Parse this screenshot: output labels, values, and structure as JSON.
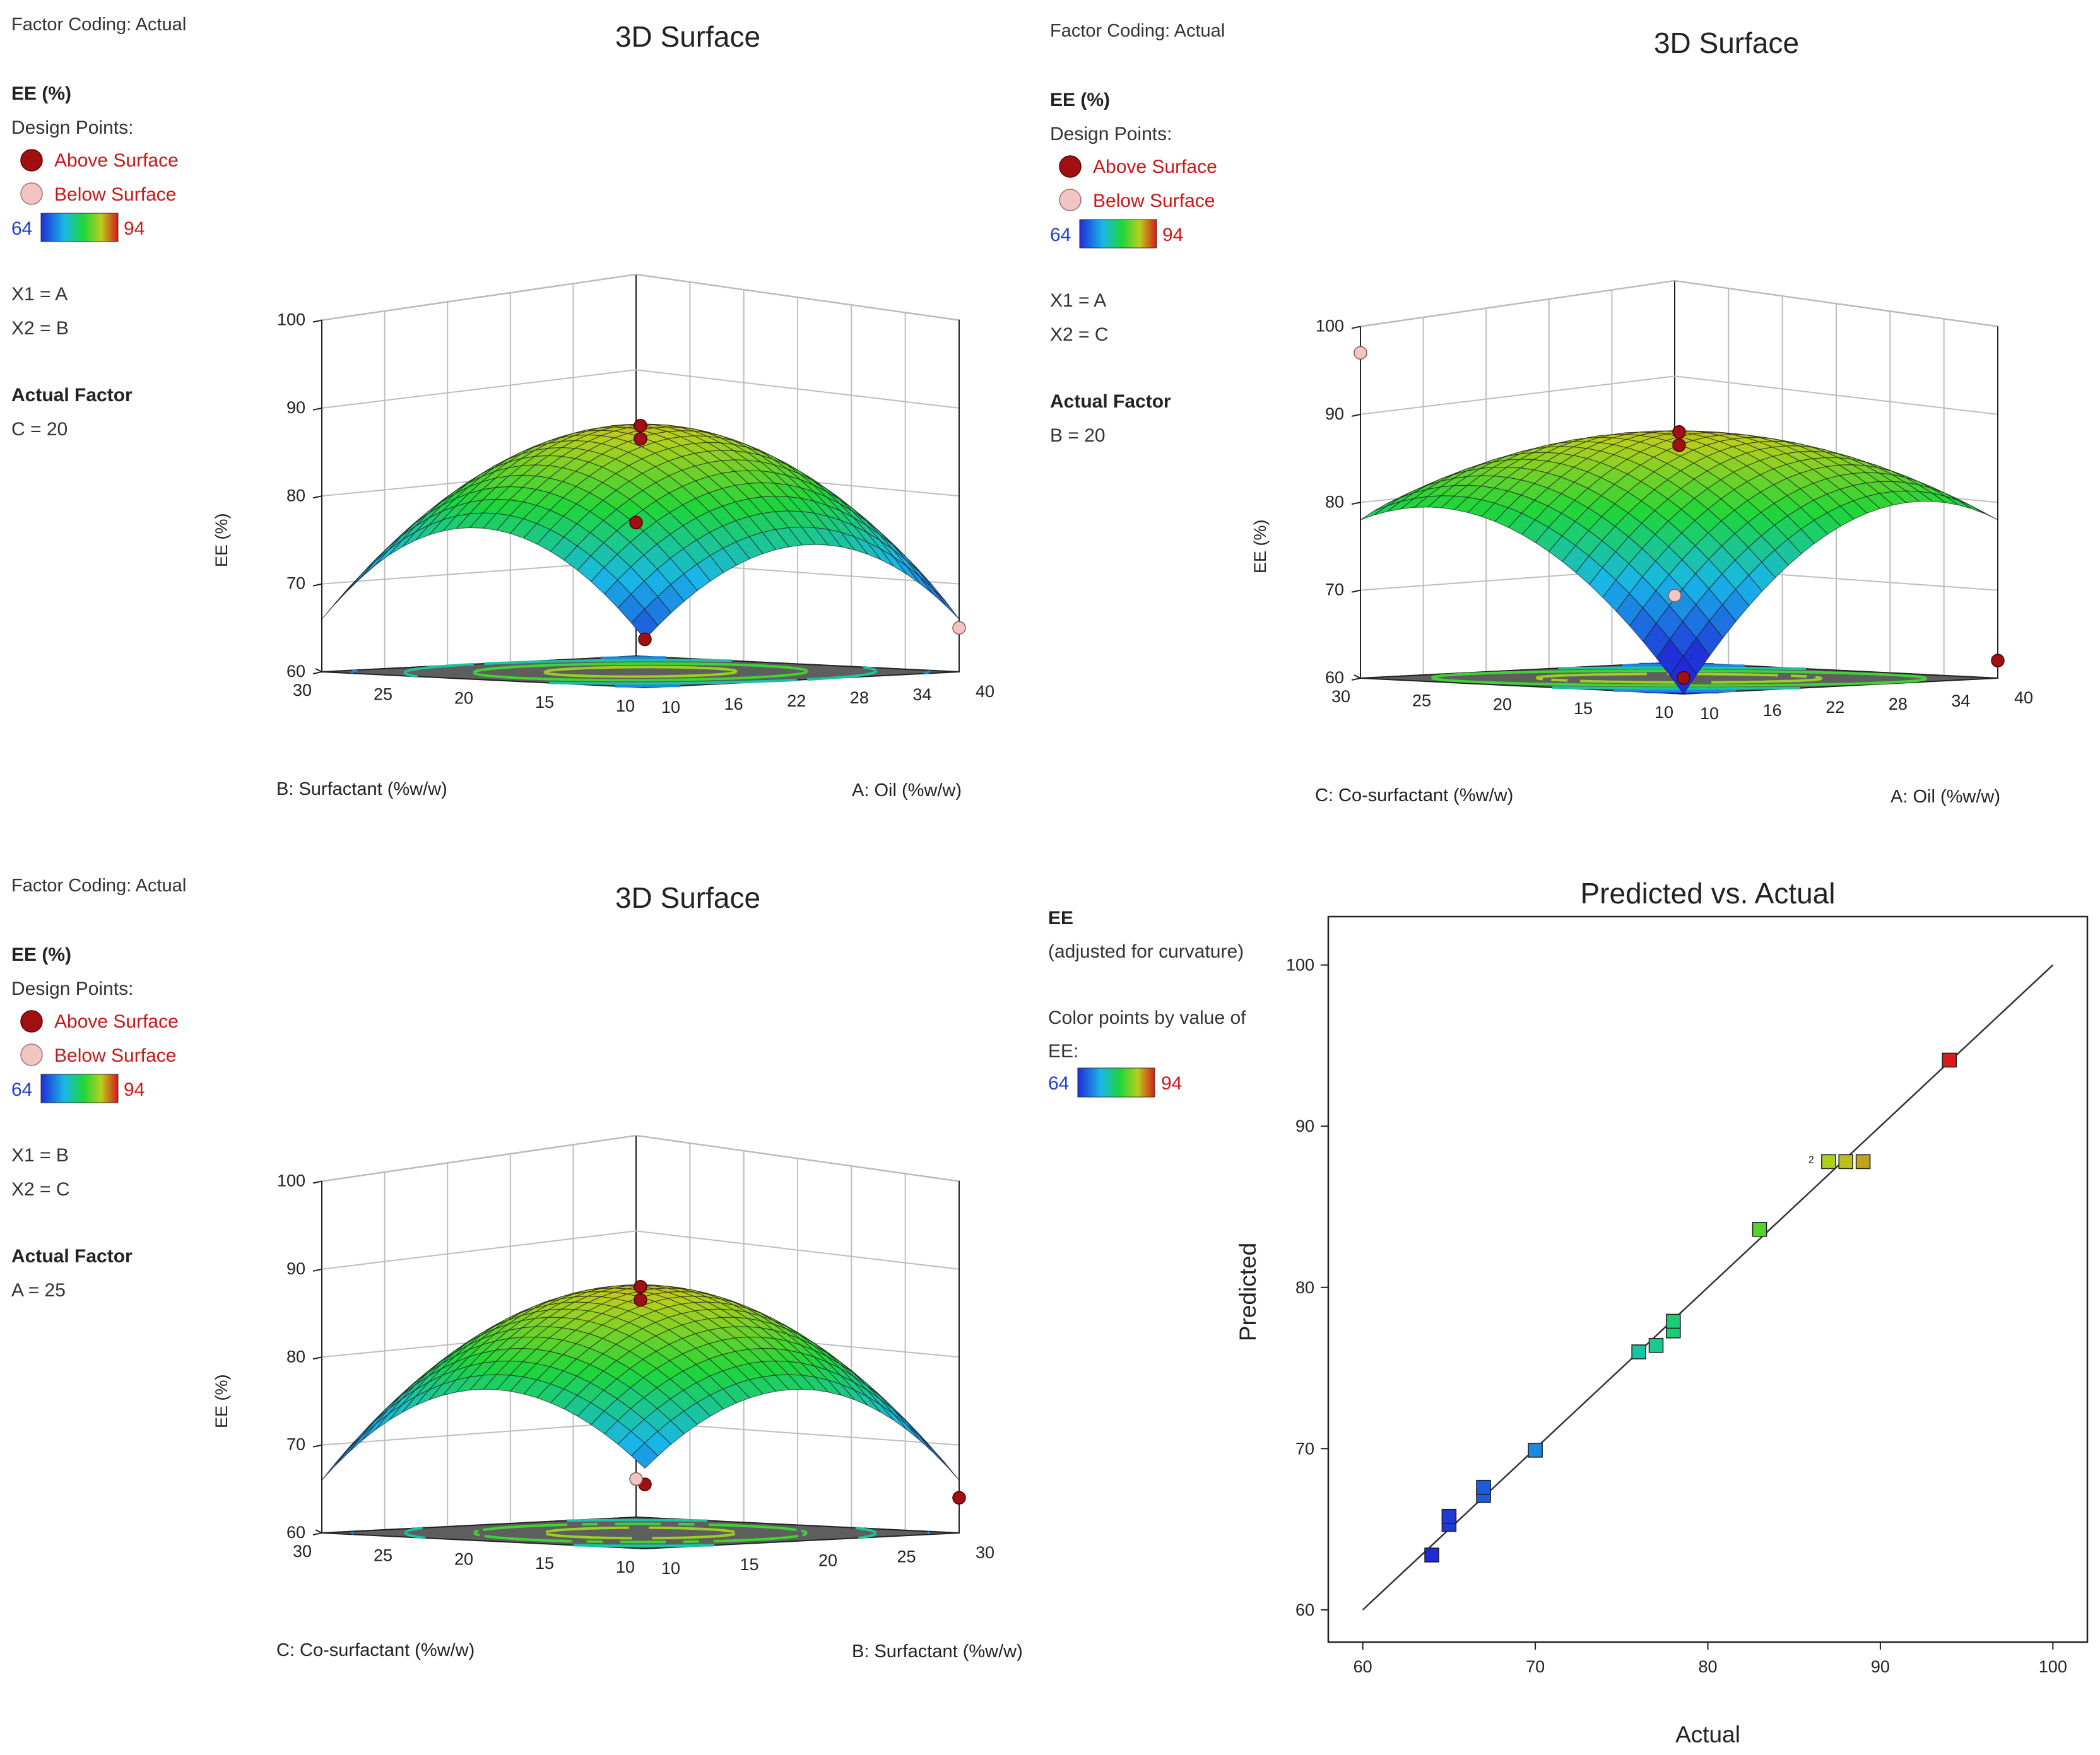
{
  "colors": {
    "above_point": "#a01010",
    "below_point": "#f2c4c4",
    "scale_low_text": "#1f3fd0",
    "scale_high_text": "#d01818",
    "legend_red_text": "#c81818",
    "floor": "#5e5e5e",
    "grid": "#bdbdbd",
    "axis": "#222222"
  },
  "panels": [
    {
      "factor_coding": "Factor Coding: Actual",
      "title": "3D Surface",
      "response": "EE (%)",
      "design_points": "Design Points:",
      "above": "Above Surface",
      "below": "Below Surface",
      "scale_min": "64",
      "scale_max": "94",
      "x1": "X1 = A",
      "x2": "X2 = B",
      "actual_factor": "Actual Factor",
      "actual_value": "C = 20",
      "z_label": "EE (%)",
      "z_ticks": [
        "60",
        "70",
        "80",
        "90",
        "100"
      ],
      "left_axis_label": "B: Surfactant (%w/w)",
      "left_ticks": [
        "10",
        "15",
        "20",
        "25",
        "30"
      ],
      "right_axis_label": "A: Oil (%w/w)",
      "right_ticks": [
        "10",
        "16",
        "22",
        "28",
        "34",
        "40"
      ],
      "model": {
        "center": 88,
        "a": 12,
        "b": 10,
        "ab": 0
      },
      "points": [
        {
          "u": 0,
          "v": 0,
          "ee": 88,
          "type": "above"
        },
        {
          "u": 0,
          "v": 0,
          "ee": 86.5,
          "type": "above"
        },
        {
          "u": -1,
          "v": 1,
          "ee": 66,
          "type": "above"
        },
        {
          "u": 1,
          "v": -1,
          "ee": 74,
          "type": "above"
        },
        {
          "u": -1,
          "v": -1,
          "ee": 65,
          "type": "below"
        }
      ]
    },
    {
      "factor_coding": "Factor Coding: Actual",
      "title": "3D Surface",
      "response": "EE (%)",
      "design_points": "Design Points:",
      "above": "Above Surface",
      "below": "Below Surface",
      "scale_min": "64",
      "scale_max": "94",
      "x1": "X1 = A",
      "x2": "X2 = C",
      "actual_factor": "Actual Factor",
      "actual_value": "B = 20",
      "z_label": "EE (%)",
      "z_ticks": [
        "60",
        "70",
        "80",
        "90",
        "100"
      ],
      "left_axis_label": "C: Co-surfactant (%w/w)",
      "left_ticks": [
        "10",
        "15",
        "20",
        "25",
        "30"
      ],
      "right_axis_label": "A: Oil (%w/w)",
      "right_ticks": [
        "10",
        "16",
        "22",
        "28",
        "34",
        "40"
      ],
      "model": {
        "center": 88,
        "a": 9,
        "b": 10,
        "ab": 9
      },
      "points": [
        {
          "u": 0,
          "v": 0,
          "ee": 88,
          "type": "above"
        },
        {
          "u": 0,
          "v": 0,
          "ee": 86.5,
          "type": "above"
        },
        {
          "u": -1,
          "v": 1,
          "ee": 62,
          "type": "above"
        },
        {
          "u": -1,
          "v": -1,
          "ee": 62,
          "type": "above"
        },
        {
          "u": 1,
          "v": -1,
          "ee": 67,
          "type": "below"
        },
        {
          "u": 1,
          "v": 1,
          "ee": 97,
          "type": "below"
        }
      ]
    },
    {
      "factor_coding": "Factor Coding: Actual",
      "title": "3D Surface",
      "response": "EE (%)",
      "design_points": "Design Points:",
      "above": "Above Surface",
      "below": "Below Surface",
      "scale_min": "64",
      "scale_max": "94",
      "x1": "X1 = B",
      "x2": "X2 = C",
      "actual_factor": "Actual Factor",
      "actual_value": "A = 25",
      "z_label": "EE (%)",
      "z_ticks": [
        "60",
        "70",
        "80",
        "90",
        "100"
      ],
      "left_axis_label": "C: Co-surfactant (%w/w)",
      "left_ticks": [
        "10",
        "15",
        "20",
        "25",
        "30"
      ],
      "right_axis_label": "B: Surfactant (%w/w)",
      "right_ticks": [
        "10",
        "15",
        "20",
        "25",
        "30"
      ],
      "model": {
        "center": 88,
        "a": 10,
        "b": 10,
        "ab": -2
      },
      "points": [
        {
          "u": 0,
          "v": 0,
          "ee": 88,
          "type": "above"
        },
        {
          "u": 0,
          "v": 0,
          "ee": 86.5,
          "type": "above"
        },
        {
          "u": -1,
          "v": 1,
          "ee": 68,
          "type": "above"
        },
        {
          "u": -1,
          "v": -1,
          "ee": 64,
          "type": "above"
        },
        {
          "u": 1,
          "v": -1,
          "ee": 64,
          "type": "below"
        }
      ]
    }
  ],
  "pva": {
    "response": "EE",
    "adjusted": "(adjusted for curvature)",
    "color_by": "Color points by value of",
    "color_by2": "EE:",
    "scale_min": "64",
    "scale_max": "94"
  },
  "chart_data": [
    {
      "type": "surface",
      "title": "3D Surface",
      "zlabel": "EE (%)",
      "zlim": [
        60,
        100
      ],
      "x_factor": "A: Oil (%w/w)",
      "x_range": [
        10,
        40
      ],
      "y_factor": "B: Surfactant (%w/w)",
      "y_range": [
        10,
        30
      ],
      "fixed_factor": "C = 20",
      "center_value": 88
    },
    {
      "type": "surface",
      "title": "3D Surface",
      "zlabel": "EE (%)",
      "zlim": [
        60,
        100
      ],
      "x_factor": "A: Oil (%w/w)",
      "x_range": [
        10,
        40
      ],
      "y_factor": "C: Co-surfactant (%w/w)",
      "y_range": [
        10,
        30
      ],
      "fixed_factor": "B = 20",
      "center_value": 88
    },
    {
      "type": "surface",
      "title": "3D Surface",
      "zlabel": "EE (%)",
      "zlim": [
        60,
        100
      ],
      "x_factor": "B: Surfactant (%w/w)",
      "x_range": [
        10,
        30
      ],
      "y_factor": "C: Co-surfactant (%w/w)",
      "y_range": [
        10,
        30
      ],
      "fixed_factor": "A = 25",
      "center_value": 88
    },
    {
      "type": "scatter",
      "title": "Predicted vs. Actual",
      "xlabel": "Actual",
      "ylabel": "Predicted",
      "xlim": [
        58,
        102
      ],
      "ylim": [
        58,
        103
      ],
      "xticks": [
        "60",
        "70",
        "80",
        "90",
        "100"
      ],
      "yticks": [
        "60",
        "70",
        "80",
        "90",
        "100"
      ],
      "line": [
        [
          60,
          60
        ],
        [
          100,
          100
        ]
      ],
      "annotation": "2",
      "points": [
        {
          "x": 64,
          "y": 63.4
        },
        {
          "x": 65,
          "y": 65.3
        },
        {
          "x": 65,
          "y": 65.8
        },
        {
          "x": 67,
          "y": 67.1
        },
        {
          "x": 67,
          "y": 67.6
        },
        {
          "x": 70,
          "y": 69.9
        },
        {
          "x": 76,
          "y": 76.0
        },
        {
          "x": 77,
          "y": 76.4
        },
        {
          "x": 78,
          "y": 77.3
        },
        {
          "x": 78,
          "y": 77.9
        },
        {
          "x": 83,
          "y": 83.6
        },
        {
          "x": 87,
          "y": 87.8
        },
        {
          "x": 88,
          "y": 87.8
        },
        {
          "x": 89,
          "y": 87.8
        },
        {
          "x": 94,
          "y": 94.1
        }
      ]
    }
  ]
}
